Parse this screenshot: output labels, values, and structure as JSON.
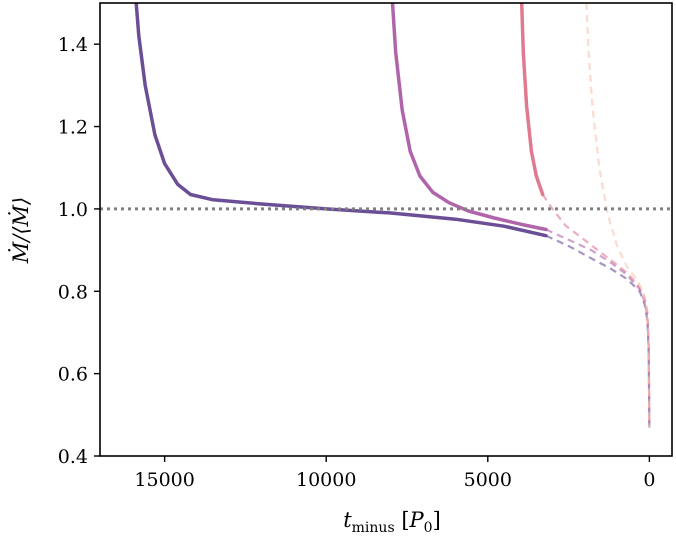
{
  "chart_data": {
    "type": "line",
    "xlabel": "t_minus [P_0]",
    "ylabel": "Ṁ/⟨Ṁ⟩",
    "xlim": [
      17000,
      -700
    ],
    "ylim": [
      0.4,
      1.5
    ],
    "x_reversed": true,
    "xticks": [
      15000,
      10000,
      5000,
      0
    ],
    "xtick_labels": [
      "15000",
      "10000",
      "5000",
      "0"
    ],
    "yticks": [
      0.4,
      0.6,
      0.8,
      1.0,
      1.2,
      1.4
    ],
    "ytick_labels": [
      "0.4",
      "0.6",
      "0.8",
      "1.0",
      "1.2",
      "1.4"
    ],
    "reference_line": {
      "y": 1.0,
      "style": "dotted",
      "color": "#808080"
    },
    "grid": false,
    "series": [
      {
        "color": "#6b4f96",
        "solid": [
          [
            15880,
            1.5
          ],
          [
            15800,
            1.42
          ],
          [
            15600,
            1.3
          ],
          [
            15300,
            1.18
          ],
          [
            15000,
            1.11
          ],
          [
            14600,
            1.06
          ],
          [
            14200,
            1.035
          ],
          [
            13500,
            1.022
          ],
          [
            12000,
            1.012
          ],
          [
            10000,
            1.0
          ],
          [
            8000,
            0.99
          ],
          [
            6000,
            0.975
          ],
          [
            4500,
            0.958
          ],
          [
            3200,
            0.935
          ]
        ],
        "dashed": [
          [
            3200,
            0.935
          ],
          [
            2500,
            0.91
          ],
          [
            1800,
            0.88
          ],
          [
            1200,
            0.855
          ],
          [
            700,
            0.83
          ],
          [
            300,
            0.8
          ],
          [
            150,
            0.77
          ],
          [
            60,
            0.73
          ],
          [
            20,
            0.65
          ],
          [
            0,
            0.465
          ]
        ]
      },
      {
        "color": "#b064aa",
        "solid": [
          [
            7950,
            1.5
          ],
          [
            7850,
            1.38
          ],
          [
            7650,
            1.24
          ],
          [
            7400,
            1.14
          ],
          [
            7100,
            1.08
          ],
          [
            6700,
            1.04
          ],
          [
            6200,
            1.015
          ],
          [
            5600,
            0.995
          ],
          [
            4800,
            0.978
          ],
          [
            4000,
            0.963
          ],
          [
            3200,
            0.95
          ]
        ],
        "dashed": [
          [
            3200,
            0.95
          ],
          [
            2500,
            0.925
          ],
          [
            1800,
            0.9
          ],
          [
            1200,
            0.87
          ],
          [
            700,
            0.84
          ],
          [
            300,
            0.805
          ],
          [
            150,
            0.775
          ],
          [
            60,
            0.74
          ],
          [
            20,
            0.66
          ],
          [
            0,
            0.47
          ]
        ]
      },
      {
        "color": "#e07a8f",
        "solid": [
          [
            3950,
            1.5
          ],
          [
            3900,
            1.38
          ],
          [
            3800,
            1.25
          ],
          [
            3650,
            1.14
          ],
          [
            3500,
            1.08
          ],
          [
            3300,
            1.035
          ]
        ],
        "dashed": [
          [
            3300,
            1.035
          ],
          [
            3000,
            1.0
          ],
          [
            2600,
            0.96
          ],
          [
            2100,
            0.93
          ],
          [
            1600,
            0.9
          ],
          [
            1100,
            0.87
          ],
          [
            700,
            0.845
          ],
          [
            350,
            0.815
          ],
          [
            150,
            0.785
          ],
          [
            60,
            0.75
          ],
          [
            20,
            0.67
          ],
          [
            0,
            0.47
          ]
        ]
      },
      {
        "color": "#f6c3ad",
        "solid": [],
        "dashed": [
          [
            1950,
            1.5
          ],
          [
            1880,
            1.38
          ],
          [
            1750,
            1.24
          ],
          [
            1550,
            1.1
          ],
          [
            1300,
            0.99
          ],
          [
            1000,
            0.91
          ],
          [
            700,
            0.86
          ],
          [
            400,
            0.83
          ],
          [
            200,
            0.8
          ],
          [
            80,
            0.76
          ],
          [
            20,
            0.68
          ],
          [
            0,
            0.47
          ]
        ]
      }
    ]
  }
}
